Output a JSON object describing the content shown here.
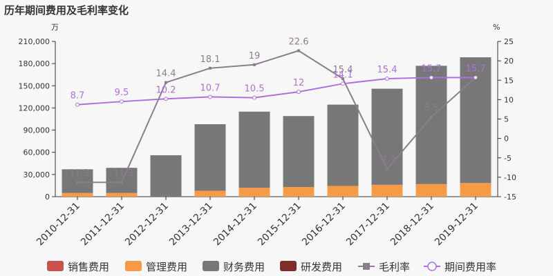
{
  "chart_data": {
    "type": "bar",
    "title": "历年期间费用及毛利率变化",
    "left_unit": "万",
    "right_unit": "%",
    "categories": [
      "2010-12-31",
      "2011-12-31",
      "2012-12-31",
      "2013-12-31",
      "2014-12-31",
      "2015-12-31",
      "2016-12-31",
      "2017-12-31",
      "2018-12-31",
      "2019-12-31"
    ],
    "stacked": true,
    "left_axis": {
      "min": 0,
      "max": 210000,
      "ticks": [
        "0",
        "30,000",
        "60,000",
        "90,000",
        "120,000",
        "150,000",
        "180,000",
        "210,000"
      ]
    },
    "right_axis": {
      "min": -15,
      "max": 25,
      "ticks": [
        "-15",
        "-10",
        "-5",
        "0",
        "5",
        "10",
        "15",
        "20",
        "25"
      ]
    },
    "series": [
      {
        "name": "销售费用",
        "kind": "bar",
        "axis": "left",
        "color": "#c9524f",
        "values": [
          0,
          0,
          0,
          0,
          0,
          0,
          0,
          0,
          0,
          0
        ]
      },
      {
        "name": "管理费用",
        "kind": "bar",
        "axis": "left",
        "color": "#f79a45",
        "values": [
          5000,
          5000,
          0,
          8000,
          12000,
          13000,
          14500,
          16000,
          17000,
          18500
        ]
      },
      {
        "name": "财务费用",
        "kind": "bar",
        "axis": "left",
        "color": "#777777",
        "values": [
          32000,
          34000,
          56000,
          90000,
          103000,
          96000,
          110000,
          130000,
          160000,
          170000
        ]
      },
      {
        "name": "研发费用",
        "kind": "bar",
        "axis": "left",
        "color": "#7e2d2a",
        "values": [
          0,
          0,
          0,
          0,
          0,
          0,
          0,
          0,
          0,
          0
        ]
      },
      {
        "name": "毛利率",
        "kind": "line",
        "axis": "right",
        "color": "#8b7d8d",
        "values": [
          -11.3,
          -11.3,
          14.4,
          18.1,
          19,
          22.6,
          15.4,
          -7.9,
          5.5,
          15.7
        ],
        "labels": [
          "-11.3",
          "-11.3",
          "14.4",
          "18.1",
          "19",
          "22.6",
          "15.4",
          "-7.9",
          "5.5",
          "15.7"
        ]
      },
      {
        "name": "期间费用率",
        "kind": "line",
        "axis": "right",
        "color": "#b06fe0",
        "values": [
          8.7,
          9.5,
          10.2,
          10.7,
          10.5,
          12,
          14.1,
          15.4,
          15.7,
          15.7
        ],
        "labels": [
          "8.7",
          "9.5",
          "10.2",
          "10.7",
          "10.5",
          "12",
          "14.1",
          "15.4",
          "15.7",
          "15.7"
        ]
      }
    ],
    "legend_position": "bottom",
    "grid": false
  }
}
